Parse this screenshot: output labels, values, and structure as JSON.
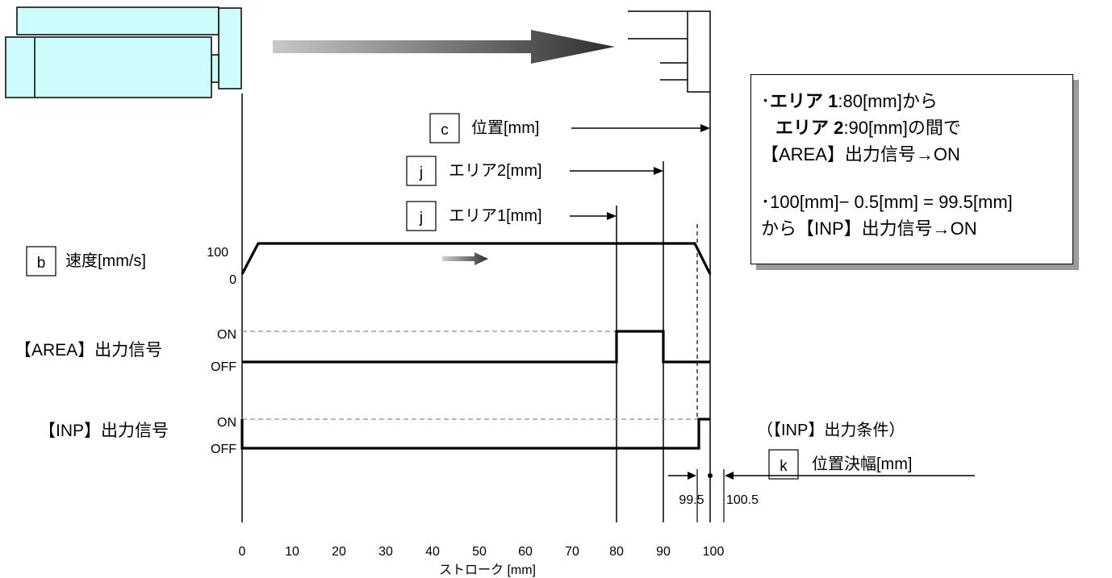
{
  "params": {
    "position": {
      "code": "c",
      "label": "位置[mm]"
    },
    "area2": {
      "code": "j",
      "label": "エリア2[mm]"
    },
    "area1": {
      "code": "j",
      "label": "エリア1[mm]"
    },
    "speed": {
      "code": "b",
      "label": "速度[mm/s]"
    },
    "inp_width": {
      "code": "k",
      "label": "位置決幅[mm]"
    }
  },
  "speed_axis": {
    "top": "100",
    "bottom": "0"
  },
  "signals": {
    "area": {
      "name": "【AREA】出力信号",
      "on": "ON",
      "off": "OFF"
    },
    "inp": {
      "name": "【INP】出力信号",
      "on": "ON",
      "off": "OFF"
    }
  },
  "inp_condition": "（【INP】出力条件）",
  "band": {
    "low": "99.5",
    "high": "100.5"
  },
  "stroke_axis": {
    "label": "ストローク [mm]",
    "ticks": [
      "0",
      "10",
      "20",
      "30",
      "40",
      "50",
      "60",
      "70",
      "80",
      "90",
      "100"
    ]
  },
  "note": {
    "l1_prefix": "･",
    "l1_bold": "エリア 1",
    "l1_rest": ":80[mm]から",
    "l2_bold": "エリア 2",
    "l2_rest": ":90[mm]の間で",
    "l3": "【AREA】出力信号→ON",
    "l4": "･100[mm]− 0.5[mm] = 99.5[mm]",
    "l5": "から【INP】出力信号→ON"
  },
  "colors": {
    "actuator_fill": "#ccfcfc",
    "line": "#000000",
    "dashed": "#8c8c8c",
    "shadow": "#9b9b9b"
  }
}
